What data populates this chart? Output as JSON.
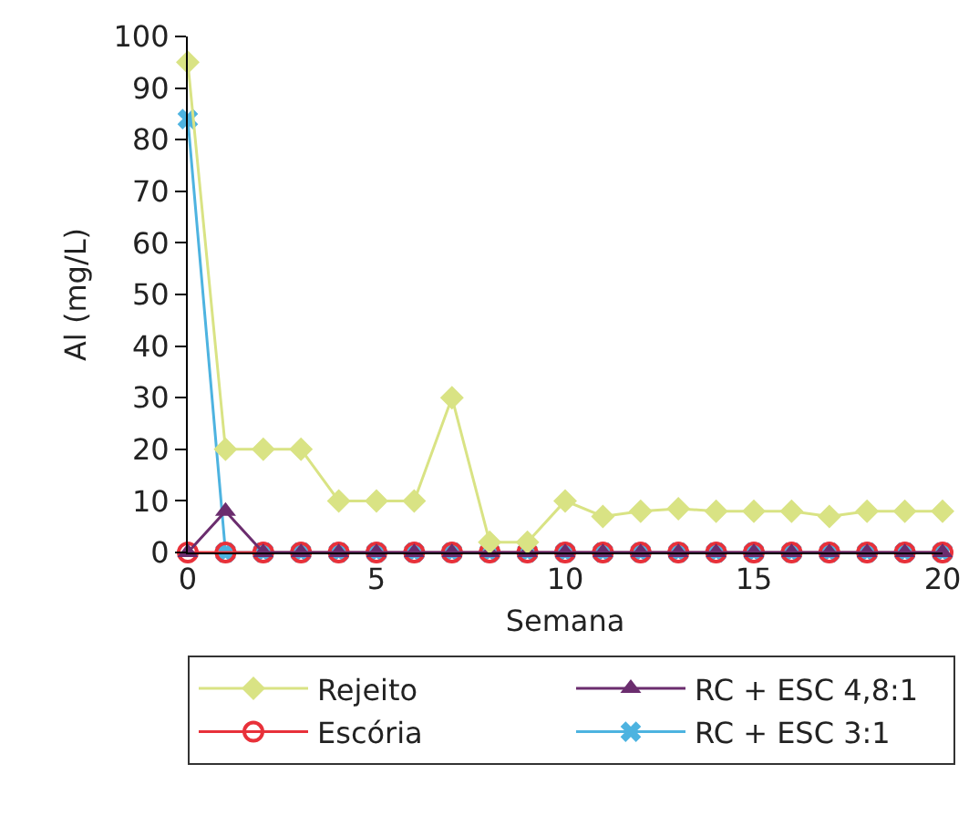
{
  "chart_data": {
    "type": "line",
    "xlabel": "Semana",
    "ylabel": "Al (mg/L)",
    "x": [
      0,
      1,
      2,
      3,
      4,
      5,
      6,
      7,
      8,
      9,
      10,
      11,
      12,
      13,
      14,
      15,
      16,
      17,
      18,
      19,
      20
    ],
    "xlim": [
      0,
      20
    ],
    "xticks": [
      0,
      5,
      10,
      15,
      20
    ],
    "ylim": [
      0,
      100
    ],
    "yticks": [
      0,
      10,
      20,
      30,
      40,
      50,
      60,
      70,
      80,
      90,
      100
    ],
    "grid": false,
    "legend": "bottom",
    "series": [
      {
        "name": "Rejeito",
        "color": "#d9e384",
        "marker": "diamond",
        "values": [
          95,
          20,
          20,
          20,
          10,
          10,
          10,
          30,
          2,
          2,
          10,
          7,
          8,
          8.5,
          8,
          8,
          8,
          7,
          8,
          8,
          8
        ]
      },
      {
        "name": "RC + ESC 4,8:1",
        "color": "#6b2d6e",
        "marker": "triangle",
        "values": [
          0,
          8,
          0,
          0,
          0,
          0,
          0,
          0,
          0,
          0,
          0,
          0,
          0,
          0,
          0,
          0,
          0,
          0,
          0,
          0,
          0
        ]
      },
      {
        "name": "Escória",
        "color": "#e8313a",
        "marker": "circle",
        "values": [
          0,
          0,
          0,
          0,
          0,
          0,
          0,
          0,
          0,
          0,
          0,
          0,
          0,
          0,
          0,
          0,
          0,
          0,
          0,
          0,
          0
        ]
      },
      {
        "name": "RC + ESC 3:1",
        "color": "#4db3e0",
        "marker": "cross",
        "values": [
          84,
          0,
          0,
          0,
          0,
          0,
          0,
          0,
          0,
          0,
          0,
          0,
          0,
          0,
          0,
          0,
          0,
          0,
          0,
          0,
          0
        ]
      }
    ]
  }
}
